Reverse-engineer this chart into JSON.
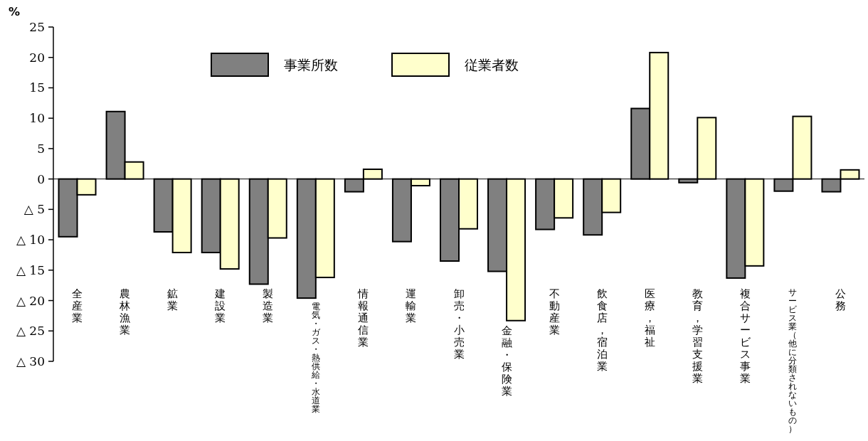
{
  "chart_data": {
    "type": "bar",
    "ylabel": "%",
    "categories": [
      "全産業",
      "農林漁業",
      "鉱業",
      "建設業",
      "製造業",
      "電気・ガス・熱供給・水道業",
      "情報通信業",
      "運輸業",
      "卸売・小売業",
      "金融・保険業",
      "不動産業",
      "飲食店，宿泊業",
      "医療，福祉",
      "教育，学習支援業",
      "複合サービス事業",
      "サービス業（他に分類されないもの）",
      "公務"
    ],
    "series": [
      {
        "name": "事業所数",
        "color": "#808080",
        "values": [
          -9.5,
          11.1,
          -8.7,
          -12.1,
          -17.3,
          -19.6,
          -2.1,
          -10.3,
          -13.5,
          -15.2,
          -8.3,
          -9.2,
          11.6,
          -0.6,
          -16.3,
          -2.0,
          -2.1
        ]
      },
      {
        "name": "従業者数",
        "color": "#ffffcc",
        "values": [
          -2.6,
          2.8,
          -12.1,
          -14.8,
          -9.7,
          -16.2,
          1.6,
          -1.1,
          -8.2,
          -23.3,
          -6.4,
          -5.5,
          20.8,
          10.1,
          -14.3,
          10.3,
          1.5
        ]
      }
    ],
    "ylim": [
      -30,
      25
    ],
    "yticks": [
      {
        "value": -30,
        "label": "△ 30"
      },
      {
        "value": -25,
        "label": "△ 25"
      },
      {
        "value": -20,
        "label": "△ 20"
      },
      {
        "value": -15,
        "label": "△ 15"
      },
      {
        "value": -10,
        "label": "△ 10"
      },
      {
        "value": -5,
        "label": "△ 5"
      },
      0,
      5,
      10,
      15,
      20,
      25
    ],
    "legend": "top"
  }
}
